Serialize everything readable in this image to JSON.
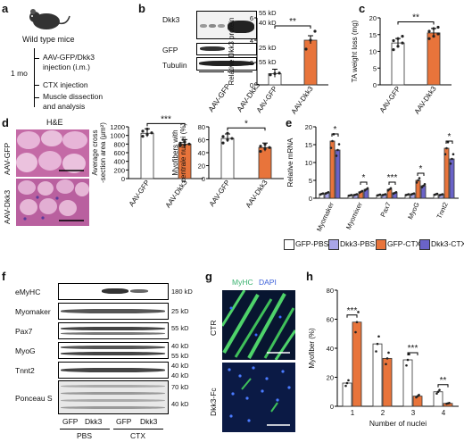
{
  "panels": {
    "a": {
      "label": "a",
      "mouse_label": "Wild type mice",
      "time_label": "1 mo",
      "steps": [
        "AAV-GFP/Dkk3",
        "injection (i.m.)",
        "CTX injection",
        "Muscle dissection",
        "and analysis"
      ]
    },
    "b": {
      "label": "b",
      "blot_rows": [
        "Dkk3",
        "GFP",
        "Tubulin"
      ],
      "kd_markers": [
        "55 kD",
        "40 kD",
        "25 kD",
        "55 kD"
      ],
      "lanes": [
        "AAV-GFP",
        "AAV-Dkk3"
      ],
      "sig": "**"
    },
    "c": {
      "label": "c",
      "sig": "**"
    },
    "d": {
      "label": "d",
      "stain_title": "H&E",
      "row_labels": [
        "AAV-GFP",
        "AAV-Dkk3"
      ],
      "sig_csa": "***",
      "sig_central": "*"
    },
    "e": {
      "label": "e",
      "legend": [
        {
          "name": "GFP-PBS",
          "color": "#ffffff"
        },
        {
          "name": "Dkk3-PBS",
          "color": "#a9a6e8"
        },
        {
          "name": "GFP-CTX",
          "color": "#e8743b"
        },
        {
          "name": "Dkk3-CTX",
          "color": "#6a63c8"
        }
      ],
      "sigs": [
        "*",
        "*",
        "***",
        "*",
        "*"
      ]
    },
    "f": {
      "label": "f",
      "rows": [
        "eMyHC",
        "Myomaker",
        "Pax7",
        "MyoG",
        "Tnnt2",
        "Ponceau S"
      ],
      "kd_markers": [
        "180 kD",
        "25 kD",
        "55 kD",
        "40 kD",
        "55 kD",
        "40 kD",
        "40 kD",
        "70 kD",
        "40 kD"
      ],
      "lane_groups": [
        "GFP",
        "Dkk3",
        "GFP",
        "Dkk3"
      ],
      "conditions": [
        "PBS",
        "CTX"
      ]
    },
    "g": {
      "label": "g",
      "title_a": "MyHC",
      "title_b": "DAPI",
      "row_labels": [
        "CTR",
        "Dkk3-Fc"
      ]
    },
    "h": {
      "label": "h",
      "sigs": [
        "***",
        "***",
        "**"
      ]
    }
  },
  "chart_data": [
    {
      "panel": "b",
      "type": "bar",
      "categories": [
        "AAV-GFP",
        "AAV-Dkk3"
      ],
      "values": [
        1.0,
        4.0
      ],
      "points": [
        [
          0.9,
          1.0,
          1.05
        ],
        [
          3.2,
          4.0,
          4.8
        ]
      ],
      "ylabel": "Relative Dkk3 protein",
      "yticks": [
        0,
        2,
        4,
        6
      ],
      "ylim": [
        0,
        6
      ],
      "colors": [
        "#ffffff",
        "#e8743b"
      ]
    },
    {
      "panel": "c",
      "type": "bar",
      "categories": [
        "AAV-GFP",
        "AAV-Dkk3"
      ],
      "values": [
        12.5,
        15.5
      ],
      "points": [
        [
          10.5,
          11.5,
          12.5,
          13.2,
          13.8,
          14.5
        ],
        [
          13.8,
          14.5,
          15.2,
          16.0,
          16.8,
          17.2
        ]
      ],
      "ylabel": "TA weight loss (mg)",
      "yticks": [
        0,
        5,
        10,
        15,
        20
      ],
      "ylim": [
        0,
        20
      ],
      "colors": [
        "#ffffff",
        "#e8743b"
      ]
    },
    {
      "panel": "d1",
      "type": "bar",
      "categories": [
        "AAV-GFP",
        "AAV-Dkk3"
      ],
      "values": [
        1050,
        800
      ],
      "points": [
        [
          980,
          1020,
          1060,
          1100,
          1150
        ],
        [
          760,
          780,
          800,
          820,
          850
        ]
      ],
      "ylabel": "Average cross -section area (μm²)",
      "yticks": [
        0,
        200,
        400,
        600,
        800,
        1000,
        1200
      ],
      "ylim": [
        0,
        1200
      ],
      "colors": [
        "#ffffff",
        "#e8743b"
      ]
    },
    {
      "panel": "d2",
      "type": "bar",
      "categories": [
        "AAV-GFP",
        "AAV-Dkk3"
      ],
      "values": [
        62,
        48
      ],
      "points": [
        [
          55,
          60,
          62,
          65,
          70
        ],
        [
          42,
          46,
          48,
          50,
          53
        ]
      ],
      "ylabel": "Myofibers with centrale nuclei (%)",
      "yticks": [
        0,
        20,
        40,
        60,
        80
      ],
      "ylim": [
        0,
        80
      ],
      "colors": [
        "#ffffff",
        "#e8743b"
      ]
    },
    {
      "panel": "e",
      "type": "bar",
      "categories": [
        "Myomaker",
        "Myomixer",
        "Pax7",
        "MyoG",
        "Tnnt2"
      ],
      "series": [
        {
          "name": "GFP-PBS",
          "values": [
            1.2,
            0.8,
            0.9,
            1.0,
            1.1
          ]
        },
        {
          "name": "Dkk3-PBS",
          "values": [
            1.5,
            1.0,
            1.0,
            1.2,
            1.0
          ]
        },
        {
          "name": "GFP-CTX",
          "values": [
            16.0,
            1.8,
            2.5,
            5.0,
            14.0
          ]
        },
        {
          "name": "Dkk3-CTX",
          "values": [
            13.5,
            2.5,
            1.5,
            3.5,
            11.0
          ]
        }
      ],
      "ylabel": "Relative mRNA",
      "yticks": [
        0,
        5,
        10,
        15,
        20
      ],
      "ylim": [
        0,
        20
      ]
    },
    {
      "panel": "h",
      "type": "bar",
      "categories": [
        "1",
        "2",
        "3",
        "4"
      ],
      "series": [
        {
          "name": "CTR",
          "values": [
            16,
            43,
            32,
            10
          ]
        },
        {
          "name": "Dkk3-Fc",
          "values": [
            58,
            33,
            7,
            2
          ]
        }
      ],
      "ylabel": "Myofiber (%)",
      "xlabel": "Number of nuclei",
      "yticks": [
        0,
        20,
        40,
        60,
        80
      ],
      "ylim": [
        0,
        80
      ],
      "colors": [
        "#ffffff",
        "#e8743b"
      ]
    }
  ]
}
